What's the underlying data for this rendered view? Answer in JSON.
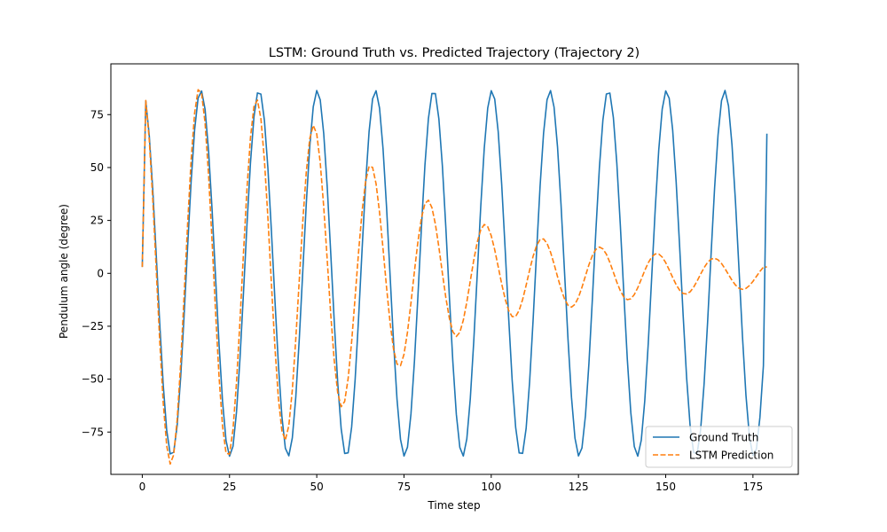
{
  "chart_data": {
    "type": "line",
    "title": "LSTM: Ground Truth vs. Predicted Trajectory (Trajectory 2)",
    "xlabel": "Time step",
    "ylabel": "Pendulum angle (degree)",
    "xlim": [
      -9,
      188
    ],
    "ylim": [
      -95,
      99
    ],
    "xticks": [
      0,
      25,
      50,
      75,
      100,
      125,
      150,
      175
    ],
    "yticks": [
      -75,
      -50,
      -25,
      0,
      25,
      50,
      75
    ],
    "grid": false,
    "legend_position": "lower-right",
    "x_range": [
      0,
      179
    ],
    "series": [
      {
        "name": "Ground Truth",
        "color": "#1f77b4",
        "line_style": "solid",
        "waveform": {
          "kind": "sinusoid",
          "amplitude": 86.5,
          "period": 16.68,
          "phase_rad": 1.535,
          "offset": 0
        },
        "start_value": 3,
        "end_value": 66
      },
      {
        "name": "LSTM Prediction",
        "color": "#ff7f0e",
        "line_style": "dashed",
        "waveform": {
          "kind": "damped_sinusoid",
          "period": 16.4,
          "phase_rad": 1.58,
          "offset": -0.8,
          "amplitude_envelope": {
            "t": [
              0,
              4,
              12,
              20,
              29,
              37,
              45,
              54,
              62,
              71,
              79,
              87,
              95,
              103,
              110,
              118,
              124,
              132,
              138,
              145,
              152,
              160,
              167,
              174,
              179
            ],
            "a": [
              89,
              90,
              89,
              88,
              84,
              82,
              74,
              67,
              56,
              46,
              38,
              31,
              26,
              21,
              19,
              16,
              15,
              13,
              12,
              10.5,
              9.5,
              8.5,
              7.5,
              6.5,
              6
            ]
          }
        },
        "start_value": 3,
        "end_value": 3
      }
    ]
  }
}
